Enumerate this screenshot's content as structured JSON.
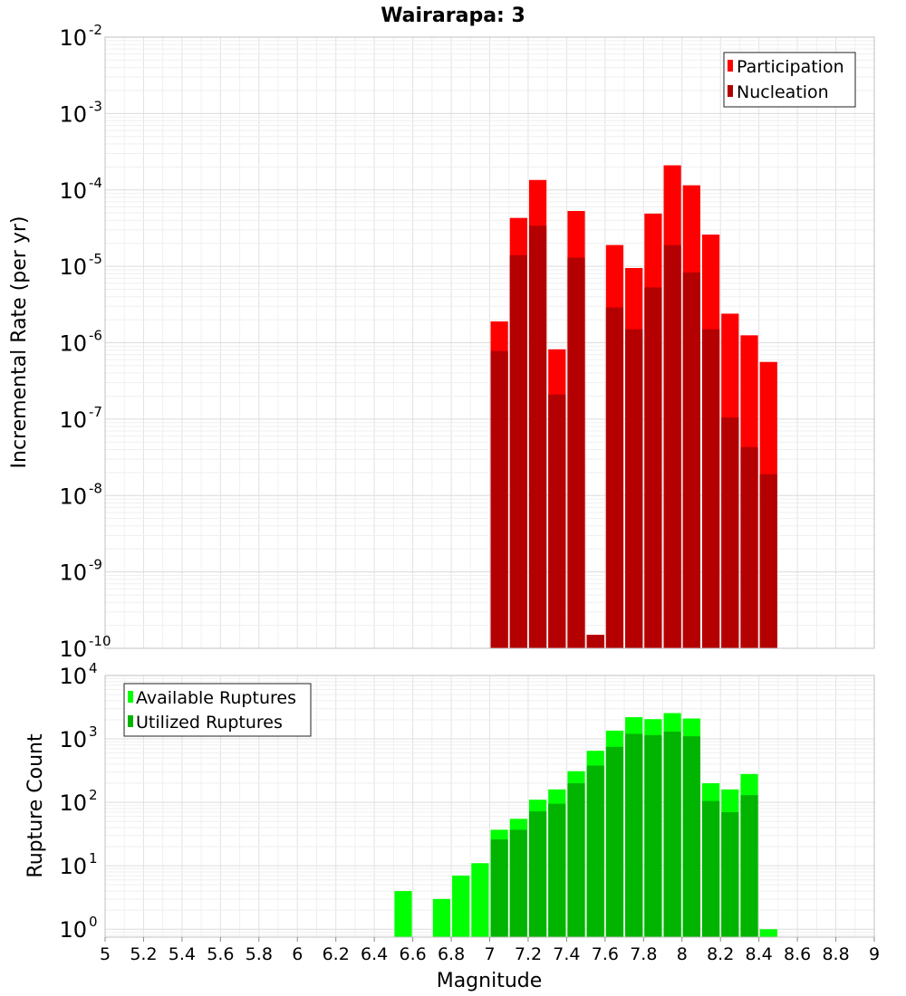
{
  "chart_data": [
    {
      "type": "bar",
      "title": "Wairarapa: 3",
      "ylabel": "Incremental Rate (per yr)",
      "xlabel": "",
      "xlim": [
        5,
        9
      ],
      "ylim": [
        1e-10,
        0.01
      ],
      "yscale": "log",
      "y_tick_exponents": [
        -10,
        -9,
        -8,
        -7,
        -6,
        -5,
        -4,
        -3,
        -2
      ],
      "grid": true,
      "legend_position": "top-right",
      "bin_width": 0.1,
      "x": [
        7.05,
        7.15,
        7.25,
        7.35,
        7.45,
        7.55,
        7.65,
        7.75,
        7.85,
        7.95,
        8.05,
        8.15,
        8.25,
        8.35,
        8.45
      ],
      "series": [
        {
          "name": "Participation",
          "color": "#ff0000",
          "values": [
            1.9e-06,
            4.3e-05,
            0.000135,
            8.2e-07,
            5.3e-05,
            1.5e-10,
            1.9e-05,
            9.5e-06,
            4.9e-05,
            0.00021,
            0.000115,
            2.6e-05,
            2.4e-06,
            1.25e-06,
            5.6e-07
          ]
        },
        {
          "name": "Nucleation",
          "color": "#b40000",
          "values": [
            7.8e-07,
            1.4e-05,
            3.4e-05,
            2.1e-07,
            1.3e-05,
            1.5e-10,
            2.9e-06,
            1.5e-06,
            5.3e-06,
            1.9e-05,
            8.3e-06,
            1.5e-06,
            1.05e-07,
            4.3e-08,
            1.9e-08
          ]
        }
      ]
    },
    {
      "type": "bar",
      "title": "",
      "ylabel": "Rupture Count",
      "xlabel": "Magnitude",
      "xlim": [
        5,
        9
      ],
      "ylim": [
        0.75,
        10000
      ],
      "yscale": "log",
      "y_tick_exponents": [
        0,
        1,
        2,
        3,
        4
      ],
      "x_ticks": [
        "5",
        "5.2",
        "5.4",
        "5.6",
        "5.8",
        "6",
        "6.2",
        "6.4",
        "6.6",
        "6.8",
        "7",
        "7.2",
        "7.4",
        "7.6",
        "7.8",
        "8",
        "8.2",
        "8.4",
        "8.6",
        "8.8",
        "9"
      ],
      "grid": true,
      "legend_position": "top-left",
      "bin_width": 0.1,
      "x": [
        6.55,
        6.75,
        6.85,
        6.95,
        7.05,
        7.15,
        7.25,
        7.35,
        7.45,
        7.55,
        7.65,
        7.75,
        7.85,
        7.95,
        8.05,
        8.15,
        8.25,
        8.35,
        8.45
      ],
      "series": [
        {
          "name": "Available Ruptures",
          "color": "#00ff00",
          "values": [
            4,
            3,
            7,
            11,
            37,
            55,
            110,
            160,
            310,
            650,
            1350,
            2200,
            2050,
            2550,
            2100,
            200,
            160,
            280,
            1
          ]
        },
        {
          "name": "Utilized Ruptures",
          "color": "#00b400",
          "values": [
            null,
            null,
            null,
            null,
            26,
            37,
            72,
            95,
            200,
            380,
            750,
            1200,
            1150,
            1300,
            1100,
            105,
            70,
            130,
            null
          ]
        }
      ]
    }
  ]
}
